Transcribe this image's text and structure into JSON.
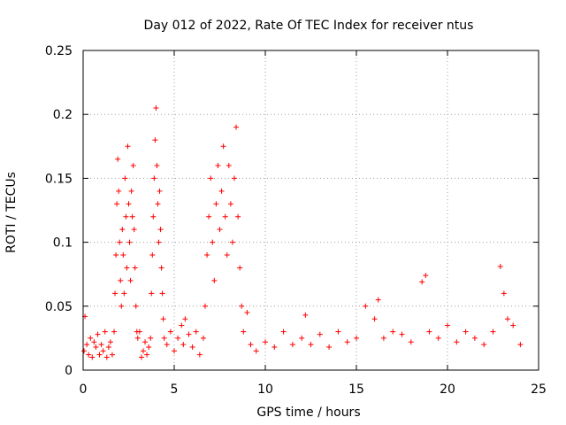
{
  "chart_data": {
    "type": "scatter",
    "title": "Day 012 of 2022, Rate Of TEC Index for receiver ntus",
    "xlabel": "GPS time / hours",
    "ylabel": "ROTI / TECUs",
    "xlim": [
      0,
      25
    ],
    "ylim": [
      0,
      0.25
    ],
    "xticks": [
      0,
      5,
      10,
      15,
      20,
      25
    ],
    "yticks": [
      0,
      0.05,
      0.1,
      0.15,
      0.2,
      0.25
    ],
    "xtick_labels": [
      "0",
      "5",
      "10",
      "15",
      "20",
      "25"
    ],
    "ytick_labels": [
      "0",
      "0.05",
      "0.1",
      "0.15",
      "0.2",
      "0.25"
    ],
    "grid": true,
    "marker": "+",
    "color": "#ff0000",
    "series": [
      {
        "values_sampled": [
          [
            0.05,
            0.015
          ],
          [
            0.1,
            0.042
          ],
          [
            0.2,
            0.02
          ],
          [
            0.3,
            0.012
          ],
          [
            0.4,
            0.025
          ],
          [
            0.5,
            0.01
          ],
          [
            0.6,
            0.022
          ],
          [
            0.7,
            0.018
          ],
          [
            0.8,
            0.028
          ],
          [
            0.9,
            0.012
          ],
          [
            1.0,
            0.02
          ],
          [
            1.1,
            0.015
          ],
          [
            1.2,
            0.03
          ],
          [
            1.3,
            0.01
          ],
          [
            1.4,
            0.018
          ],
          [
            1.5,
            0.022
          ],
          [
            1.6,
            0.012
          ],
          [
            1.7,
            0.03
          ],
          [
            1.75,
            0.06
          ],
          [
            1.8,
            0.09
          ],
          [
            1.85,
            0.13
          ],
          [
            1.9,
            0.165
          ],
          [
            1.95,
            0.14
          ],
          [
            2.0,
            0.1
          ],
          [
            2.05,
            0.07
          ],
          [
            2.1,
            0.05
          ],
          [
            2.15,
            0.11
          ],
          [
            2.2,
            0.09
          ],
          [
            2.25,
            0.06
          ],
          [
            2.3,
            0.15
          ],
          [
            2.35,
            0.12
          ],
          [
            2.4,
            0.08
          ],
          [
            2.45,
            0.175
          ],
          [
            2.5,
            0.13
          ],
          [
            2.55,
            0.1
          ],
          [
            2.6,
            0.07
          ],
          [
            2.65,
            0.14
          ],
          [
            2.7,
            0.12
          ],
          [
            2.75,
            0.16
          ],
          [
            2.8,
            0.11
          ],
          [
            2.85,
            0.08
          ],
          [
            2.9,
            0.05
          ],
          [
            2.95,
            0.03
          ],
          [
            3.0,
            0.025
          ],
          [
            3.1,
            0.03
          ],
          [
            3.2,
            0.01
          ],
          [
            3.3,
            0.015
          ],
          [
            3.4,
            0.022
          ],
          [
            3.5,
            0.012
          ],
          [
            3.6,
            0.018
          ],
          [
            3.7,
            0.025
          ],
          [
            3.75,
            0.06
          ],
          [
            3.8,
            0.09
          ],
          [
            3.85,
            0.12
          ],
          [
            3.9,
            0.15
          ],
          [
            3.95,
            0.18
          ],
          [
            4.0,
            0.205
          ],
          [
            4.05,
            0.16
          ],
          [
            4.1,
            0.13
          ],
          [
            4.15,
            0.1
          ],
          [
            4.2,
            0.14
          ],
          [
            4.25,
            0.11
          ],
          [
            4.3,
            0.08
          ],
          [
            4.35,
            0.06
          ],
          [
            4.4,
            0.04
          ],
          [
            4.45,
            0.025
          ],
          [
            4.6,
            0.02
          ],
          [
            4.8,
            0.03
          ],
          [
            5.0,
            0.015
          ],
          [
            5.2,
            0.025
          ],
          [
            5.4,
            0.035
          ],
          [
            5.5,
            0.02
          ],
          [
            5.6,
            0.04
          ],
          [
            5.8,
            0.028
          ],
          [
            6.0,
            0.018
          ],
          [
            6.2,
            0.03
          ],
          [
            6.4,
            0.012
          ],
          [
            6.6,
            0.025
          ],
          [
            6.7,
            0.05
          ],
          [
            6.8,
            0.09
          ],
          [
            6.9,
            0.12
          ],
          [
            7.0,
            0.15
          ],
          [
            7.1,
            0.1
          ],
          [
            7.2,
            0.07
          ],
          [
            7.3,
            0.13
          ],
          [
            7.4,
            0.16
          ],
          [
            7.5,
            0.11
          ],
          [
            7.6,
            0.14
          ],
          [
            7.7,
            0.175
          ],
          [
            7.8,
            0.12
          ],
          [
            7.9,
            0.09
          ],
          [
            8.0,
            0.16
          ],
          [
            8.1,
            0.13
          ],
          [
            8.2,
            0.1
          ],
          [
            8.3,
            0.15
          ],
          [
            8.4,
            0.19
          ],
          [
            8.5,
            0.12
          ],
          [
            8.6,
            0.08
          ],
          [
            8.7,
            0.05
          ],
          [
            8.8,
            0.03
          ],
          [
            9.0,
            0.045
          ],
          [
            9.2,
            0.02
          ],
          [
            9.5,
            0.015
          ],
          [
            10,
            0.022
          ],
          [
            10.5,
            0.018
          ],
          [
            11,
            0.03
          ],
          [
            11.5,
            0.02
          ],
          [
            12,
            0.025
          ],
          [
            12.2,
            0.043
          ],
          [
            12.5,
            0.02
          ],
          [
            13,
            0.028
          ],
          [
            13.5,
            0.018
          ],
          [
            14,
            0.03
          ],
          [
            14.5,
            0.022
          ],
          [
            15,
            0.025
          ],
          [
            15.5,
            0.05
          ],
          [
            16,
            0.04
          ],
          [
            16.2,
            0.055
          ],
          [
            16.5,
            0.025
          ],
          [
            17,
            0.03
          ],
          [
            17.5,
            0.028
          ],
          [
            18,
            0.022
          ],
          [
            18.6,
            0.069
          ],
          [
            18.8,
            0.074
          ],
          [
            19,
            0.03
          ],
          [
            19.5,
            0.025
          ],
          [
            20,
            0.035
          ],
          [
            20.5,
            0.022
          ],
          [
            21,
            0.03
          ],
          [
            21.5,
            0.025
          ],
          [
            22,
            0.02
          ],
          [
            22.5,
            0.03
          ],
          [
            22.9,
            0.081
          ],
          [
            23.1,
            0.06
          ],
          [
            23.3,
            0.04
          ],
          [
            23.6,
            0.035
          ],
          [
            24,
            0.02
          ]
        ]
      }
    ]
  }
}
